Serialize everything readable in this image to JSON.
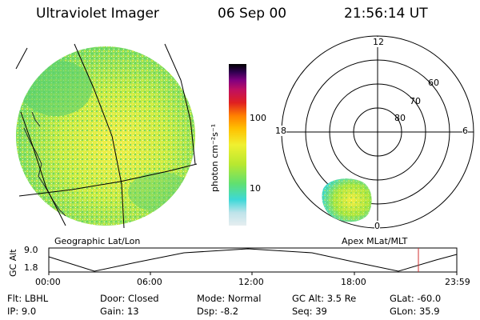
{
  "header": {
    "instrument": "Ultraviolet Imager",
    "date": "06 Sep 00",
    "time": "21:56:14 UT"
  },
  "left_panel": {
    "label": "Geographic Lat/Lon"
  },
  "colorbar": {
    "unit_label": "photon cm⁻²s⁻¹",
    "tick_100": "100",
    "tick_10": "10",
    "scale": "log",
    "colors": [
      "#e6eef0",
      "#bfe3ea",
      "#3dd8d8",
      "#60e070",
      "#b8e830",
      "#f0f030",
      "#ffc000",
      "#ff8000",
      "#e02020",
      "#c01060",
      "#800080",
      "#300050",
      "#000000"
    ]
  },
  "polar_panel": {
    "label": "Apex MLat/MLT",
    "mlt_labels": {
      "top": "12",
      "right": "6",
      "bottom": "0",
      "left": "18"
    },
    "lat_labels": [
      "60",
      "70",
      "80"
    ]
  },
  "altitude_plot": {
    "ylabel": "GC Alt",
    "ymax_label": "9.0",
    "ymin_label": "1.8",
    "xticks": [
      "00:00",
      "06:00",
      "12:00",
      "18:00",
      "23:59"
    ],
    "marker_color": "#d03030"
  },
  "info": {
    "flt": "Flt: LBHL",
    "ip": "IP:  9.0",
    "door": "Door: Closed",
    "gain": "Gain: 13",
    "mode": "Mode: Normal",
    "dsp": "Dsp:   -8.2",
    "gcalt": "GC Alt: 3.5 Re",
    "seq": "Seq: 39",
    "glat": "GLat: -60.0",
    "glon": "GLon:  35.9"
  }
}
